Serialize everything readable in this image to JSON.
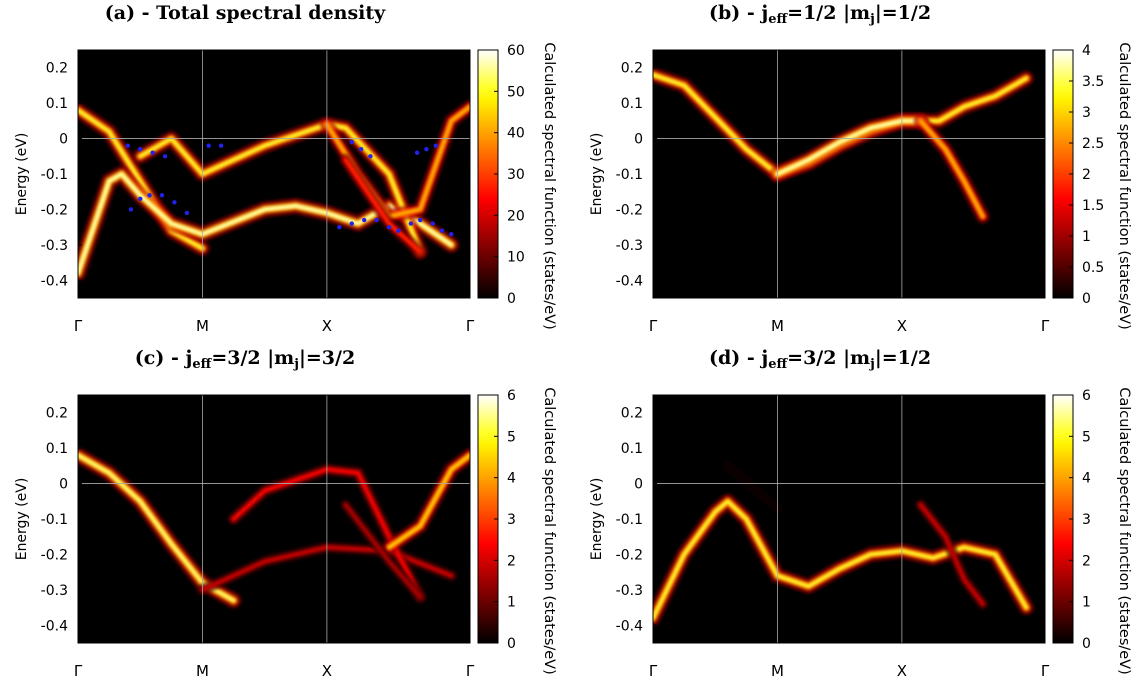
{
  "chart_data": [
    {
      "type": "heatmap",
      "title_prefix": "(a) - Total spectral density",
      "title_parts": [],
      "ylabel": "Energy (eV)",
      "colorbar_label": "Calculated spectral function (states/eV)",
      "colorbar_ticks": [
        0,
        10,
        20,
        30,
        40,
        50,
        60
      ],
      "zmax": 60,
      "k_path": [
        "Γ",
        "M",
        "X",
        "Γ"
      ],
      "y_ticks": [
        0.2,
        0.1,
        0,
        -0.1,
        -0.2,
        -0.3,
        -0.4
      ],
      "ylim": [
        -0.45,
        0.25
      ],
      "bands": [
        {
          "points": [
            [
              0,
              0.08
            ],
            [
              0.5,
              0.02
            ],
            [
              1,
              -0.12
            ],
            [
              1.5,
              -0.26
            ],
            [
              2,
              -0.31
            ]
          ],
          "intensity": 0.9
        },
        {
          "points": [
            [
              0,
              -0.38
            ],
            [
              0.5,
              -0.12
            ],
            [
              0.7,
              -0.1
            ],
            [
              1,
              -0.16
            ],
            [
              1.5,
              -0.24
            ],
            [
              2,
              -0.27
            ],
            [
              3,
              -0.2
            ],
            [
              3.5,
              -0.19
            ],
            [
              4,
              -0.21
            ],
            [
              4.5,
              -0.24
            ],
            [
              5,
              -0.19
            ],
            [
              5.5,
              -0.24
            ],
            [
              6,
              -0.3
            ]
          ],
          "intensity": 1.0
        },
        {
          "points": [
            [
              1,
              -0.05
            ],
            [
              1.5,
              0.0
            ],
            [
              2,
              -0.1
            ],
            [
              3,
              -0.02
            ],
            [
              4,
              0.04
            ],
            [
              4.3,
              0.03
            ],
            [
              5,
              -0.1
            ],
            [
              5.5,
              -0.32
            ]
          ],
          "intensity": 0.9
        },
        {
          "points": [
            [
              4,
              0.04
            ],
            [
              4.5,
              -0.1
            ],
            [
              5,
              -0.22
            ],
            [
              5.5,
              -0.2
            ],
            [
              6,
              0.05
            ],
            [
              6.3,
              0.09
            ]
          ],
          "intensity": 0.75
        },
        {
          "points": [
            [
              4.3,
              -0.06
            ],
            [
              5,
              -0.24
            ],
            [
              5.5,
              -0.32
            ]
          ],
          "intensity": 0.5
        }
      ],
      "markers": [
        [
          0.8,
          -0.02
        ],
        [
          1.0,
          -0.03
        ],
        [
          1.2,
          -0.04
        ],
        [
          1.4,
          -0.05
        ],
        [
          0.85,
          -0.2
        ],
        [
          1.0,
          -0.17
        ],
        [
          1.15,
          -0.16
        ],
        [
          1.35,
          -0.16
        ],
        [
          1.55,
          -0.18
        ],
        [
          1.75,
          -0.21
        ],
        [
          2.1,
          -0.02
        ],
        [
          2.3,
          -0.02
        ],
        [
          4.4,
          -0.01
        ],
        [
          4.55,
          -0.03
        ],
        [
          4.7,
          -0.05
        ],
        [
          4.2,
          -0.25
        ],
        [
          4.4,
          -0.24
        ],
        [
          4.6,
          -0.23
        ],
        [
          4.8,
          -0.23
        ],
        [
          5.0,
          -0.25
        ],
        [
          5.15,
          -0.26
        ],
        [
          5.35,
          -0.24
        ],
        [
          5.5,
          -0.23
        ],
        [
          5.7,
          -0.24
        ],
        [
          5.85,
          -0.26
        ],
        [
          6.0,
          -0.27
        ],
        [
          5.45,
          -0.04
        ],
        [
          5.6,
          -0.03
        ],
        [
          5.75,
          -0.02
        ]
      ]
    },
    {
      "type": "heatmap",
      "title_prefix": "(b) -",
      "title_parts": [
        {
          "t": "j"
        },
        {
          "sub": "eff"
        },
        {
          "t": "=1/2 |m"
        },
        {
          "sub": "j"
        },
        {
          "t": "|=1/2"
        }
      ],
      "ylabel": "Energy (eV)",
      "colorbar_label": "Calculated spectral function (states/eV)",
      "colorbar_ticks": [
        0,
        0.5,
        1,
        1.5,
        2,
        2.5,
        3,
        3.5,
        4
      ],
      "zmax": 4,
      "k_path": [
        "Γ",
        "M",
        "X",
        "Γ"
      ],
      "y_ticks": [
        0.2,
        0.1,
        0,
        -0.1,
        -0.2,
        -0.3,
        -0.4
      ],
      "ylim": [
        -0.45,
        0.25
      ],
      "bands": [
        {
          "points": [
            [
              0,
              0.18
            ],
            [
              0.5,
              0.15
            ],
            [
              1,
              0.06
            ],
            [
              1.5,
              -0.03
            ],
            [
              2,
              -0.1
            ],
            [
              2.5,
              -0.07
            ],
            [
              3,
              -0.02
            ],
            [
              3.5,
              0.02
            ],
            [
              4,
              0.05
            ],
            [
              4.3,
              0.05
            ],
            [
              4.6,
              0.05
            ],
            [
              5,
              0.09
            ],
            [
              5.5,
              0.12
            ],
            [
              6,
              0.17
            ]
          ],
          "intensity": 0.9
        },
        {
          "points": [
            [
              2,
              -0.1
            ],
            [
              2.5,
              -0.06
            ],
            [
              3,
              -0.01
            ],
            [
              3.5,
              0.03
            ],
            [
              4,
              0.05
            ],
            [
              4.3,
              0.05
            ]
          ],
          "intensity": 1.0
        },
        {
          "points": [
            [
              4.3,
              0.05
            ],
            [
              4.7,
              -0.03
            ],
            [
              5,
              -0.12
            ],
            [
              5.3,
              -0.22
            ]
          ],
          "intensity": 0.75
        }
      ],
      "markers": []
    },
    {
      "type": "heatmap",
      "title_prefix": "(c) -",
      "title_parts": [
        {
          "t": "j"
        },
        {
          "sub": "eff"
        },
        {
          "t": "=3/2 |m"
        },
        {
          "sub": "j"
        },
        {
          "t": "|=3/2"
        }
      ],
      "ylabel": "Energy (eV)",
      "colorbar_label": "Calculated spectral function (states/eV)",
      "colorbar_ticks": [
        0,
        1,
        2,
        3,
        4,
        5,
        6
      ],
      "zmax": 6,
      "k_path": [
        "Γ",
        "M",
        "X",
        "Γ"
      ],
      "y_ticks": [
        0.2,
        0.1,
        0,
        -0.1,
        -0.2,
        -0.3,
        -0.4
      ],
      "ylim": [
        -0.45,
        0.25
      ],
      "bands": [
        {
          "points": [
            [
              0,
              0.08
            ],
            [
              0.5,
              0.03
            ],
            [
              1,
              -0.05
            ],
            [
              1.5,
              -0.17
            ],
            [
              2,
              -0.28
            ],
            [
              2.5,
              -0.33
            ]
          ],
          "intensity": 0.95
        },
        {
          "points": [
            [
              2,
              -0.3
            ],
            [
              3,
              -0.22
            ],
            [
              4,
              -0.18
            ],
            [
              5,
              -0.19
            ],
            [
              6,
              -0.26
            ]
          ],
          "intensity": 0.35
        },
        {
          "points": [
            [
              2.5,
              -0.1
            ],
            [
              3,
              -0.02
            ],
            [
              4,
              0.04
            ],
            [
              4.5,
              0.03
            ],
            [
              5,
              -0.15
            ],
            [
              5.5,
              -0.32
            ]
          ],
          "intensity": 0.45
        },
        {
          "points": [
            [
              5,
              -0.18
            ],
            [
              5.5,
              -0.12
            ],
            [
              6,
              0.04
            ],
            [
              6.3,
              0.08
            ]
          ],
          "intensity": 0.8
        },
        {
          "points": [
            [
              4.3,
              -0.06
            ],
            [
              5,
              -0.22
            ],
            [
              5.5,
              -0.32
            ]
          ],
          "intensity": 0.3
        }
      ],
      "markers": []
    },
    {
      "type": "heatmap",
      "title_prefix": "(d) -",
      "title_parts": [
        {
          "t": "j"
        },
        {
          "sub": "eff"
        },
        {
          "t": "=3/2 |m"
        },
        {
          "sub": "j"
        },
        {
          "t": "|=1/2"
        }
      ],
      "ylabel": "Energy (eV)",
      "colorbar_label": "Calculated spectral function (states/eV)",
      "colorbar_ticks": [
        0,
        1,
        2,
        3,
        4,
        5,
        6
      ],
      "zmax": 6,
      "k_path": [
        "Γ",
        "M",
        "X",
        "Γ"
      ],
      "y_ticks": [
        0.2,
        0.1,
        0,
        -0.1,
        -0.2,
        -0.3,
        -0.4
      ],
      "ylim": [
        -0.45,
        0.25
      ],
      "bands": [
        {
          "points": [
            [
              0,
              -0.38
            ],
            [
              0.5,
              -0.2
            ],
            [
              1,
              -0.08
            ],
            [
              1.2,
              -0.05
            ],
            [
              1.5,
              -0.1
            ],
            [
              2,
              -0.26
            ],
            [
              2.5,
              -0.29
            ],
            [
              3,
              -0.24
            ],
            [
              3.5,
              -0.2
            ],
            [
              4,
              -0.19
            ],
            [
              4.5,
              -0.21
            ],
            [
              5,
              -0.18
            ],
            [
              5.5,
              -0.2
            ],
            [
              6,
              -0.35
            ]
          ],
          "intensity": 0.9
        },
        {
          "points": [
            [
              4.3,
              -0.06
            ],
            [
              4.7,
              -0.15
            ],
            [
              5,
              -0.27
            ],
            [
              5.3,
              -0.34
            ]
          ],
          "intensity": 0.35
        },
        {
          "points": [
            [
              1.2,
              0.05
            ],
            [
              1.6,
              -0.01
            ],
            [
              2,
              -0.07
            ]
          ],
          "intensity": 0.1
        }
      ],
      "markers": []
    }
  ]
}
